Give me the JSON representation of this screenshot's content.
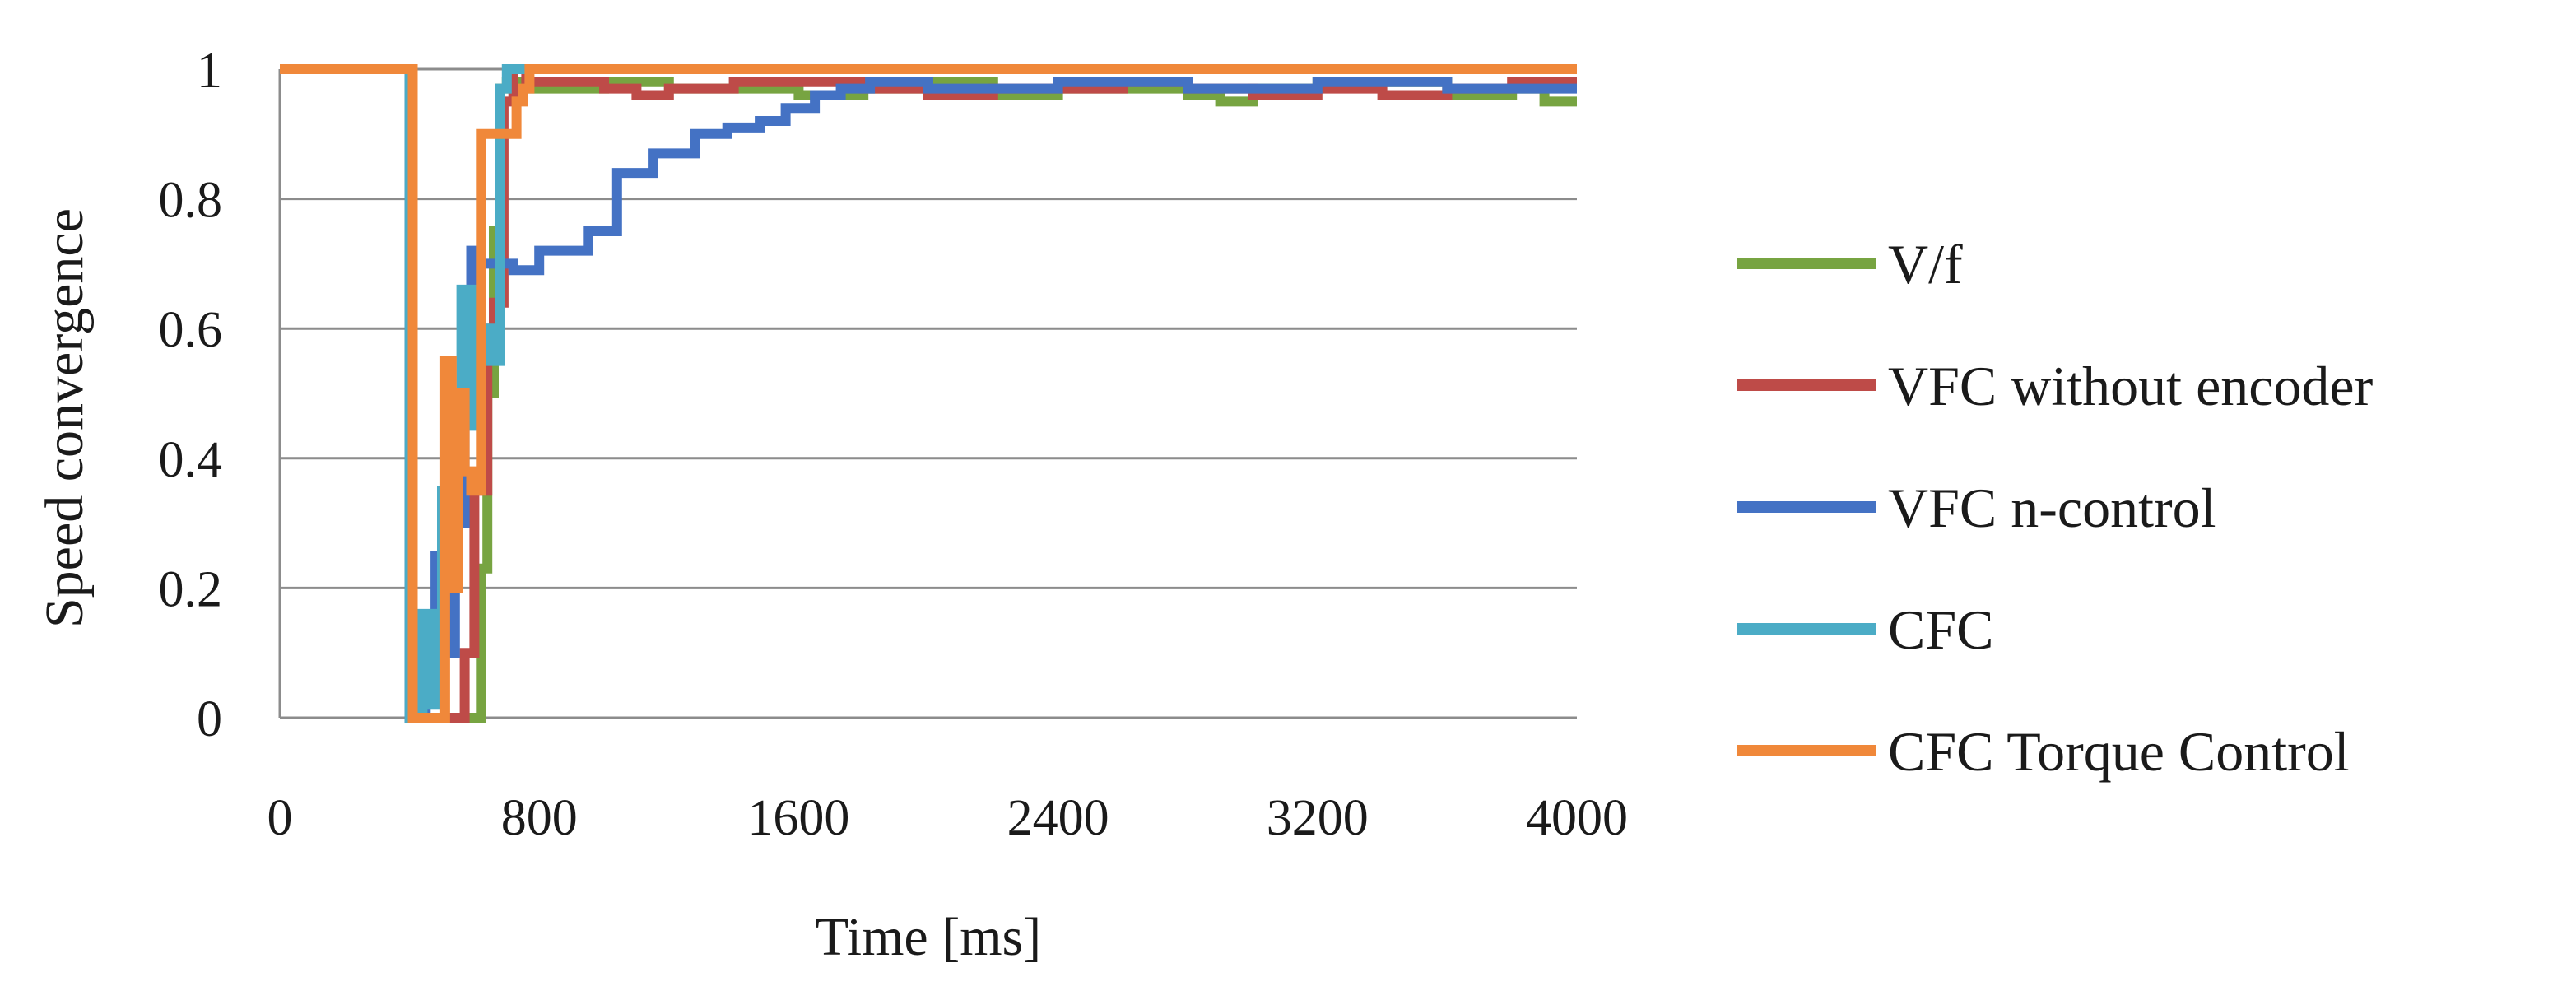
{
  "chart_data": {
    "type": "line",
    "title": "",
    "xlabel": "Time [ms]",
    "ylabel": "Speed convergence",
    "xlim": [
      0,
      4000
    ],
    "ylim": [
      0,
      1
    ],
    "x_ticks": [
      0,
      800,
      1600,
      2400,
      3200,
      4000
    ],
    "y_ticks": [
      0,
      0.2,
      0.4,
      0.6,
      0.8,
      1
    ],
    "x_tick_labels": [
      "0",
      "800",
      "1600",
      "2400",
      "3200",
      "4000"
    ],
    "y_tick_labels": [
      "0",
      "0.2",
      "0.4",
      "0.6",
      "0.8",
      "1"
    ],
    "grid": "horizontal",
    "legend_position": "right",
    "series": [
      {
        "name": "V/f",
        "color": "#77A441",
        "x": [
          0,
          400,
          400,
          500,
          500,
          620,
          620,
          640,
          640,
          660,
          660,
          680,
          680,
          700,
          700,
          750,
          750,
          1000,
          1000,
          1200,
          1200,
          1600,
          1600,
          1800,
          1800,
          2000,
          2000,
          2200,
          2200,
          2400,
          2400,
          2800,
          2800,
          2900,
          2900,
          3000,
          3000,
          3200,
          3200,
          3600,
          3600,
          3800,
          3800,
          3900,
          3900,
          4000
        ],
        "y": [
          1,
          1,
          0,
          0,
          0,
          0,
          0.23,
          0.23,
          0.5,
          0.5,
          0.75,
          0.75,
          0.97,
          0.97,
          0.98,
          0.98,
          0.97,
          0.97,
          0.98,
          0.98,
          0.97,
          0.97,
          0.96,
          0.96,
          0.97,
          0.97,
          0.98,
          0.98,
          0.96,
          0.96,
          0.97,
          0.97,
          0.96,
          0.96,
          0.95,
          0.95,
          0.97,
          0.97,
          0.98,
          0.98,
          0.96,
          0.96,
          0.97,
          0.97,
          0.95,
          0.95
        ]
      },
      {
        "name": "VFC without encoder",
        "color": "#BE4B48",
        "x": [
          0,
          400,
          400,
          550,
          550,
          570,
          570,
          600,
          600,
          640,
          640,
          660,
          660,
          690,
          690,
          720,
          720,
          760,
          760,
          1000,
          1000,
          1100,
          1100,
          1200,
          1200,
          1400,
          1400,
          1800,
          1800,
          2000,
          2000,
          2200,
          2200,
          2600,
          2600,
          2800,
          2800,
          3000,
          3000,
          3200,
          3200,
          3400,
          3400,
          3600,
          3600,
          3800,
          3800,
          4000
        ],
        "y": [
          1,
          1,
          0,
          0,
          0,
          0,
          0.1,
          0.1,
          0.35,
          0.35,
          0.6,
          0.6,
          0.64,
          0.64,
          0.95,
          0.95,
          1,
          1,
          0.98,
          0.98,
          0.97,
          0.97,
          0.96,
          0.96,
          0.97,
          0.97,
          0.98,
          0.98,
          0.97,
          0.97,
          0.96,
          0.96,
          0.97,
          0.97,
          0.98,
          0.98,
          0.97,
          0.97,
          0.96,
          0.96,
          0.97,
          0.97,
          0.96,
          0.96,
          0.97,
          0.97,
          0.98,
          0.98
        ]
      },
      {
        "name": "VFC n-control",
        "color": "#4472C4",
        "x": [
          0,
          400,
          400,
          450,
          450,
          480,
          480,
          510,
          510,
          540,
          540,
          570,
          570,
          590,
          590,
          610,
          610,
          640,
          640,
          690,
          690,
          720,
          720,
          800,
          800,
          880,
          880,
          950,
          950,
          1040,
          1040,
          1100,
          1100,
          1150,
          1150,
          1200,
          1200,
          1280,
          1280,
          1380,
          1380,
          1480,
          1480,
          1560,
          1560,
          1650,
          1650,
          1730,
          1730,
          1820,
          1820,
          1900,
          1900,
          2000,
          2000,
          2400,
          2400,
          2800,
          2800,
          3200,
          3200,
          3600,
          3600,
          4000
        ],
        "y": [
          1,
          1,
          0,
          0,
          0.15,
          0.15,
          0.25,
          0.25,
          0.1,
          0.1,
          0.3,
          0.3,
          0.6,
          0.6,
          0.72,
          0.72,
          0.7,
          0.7,
          0.7,
          0.7,
          0.7,
          0.7,
          0.69,
          0.69,
          0.72,
          0.72,
          0.72,
          0.72,
          0.75,
          0.75,
          0.84,
          0.84,
          0.84,
          0.84,
          0.87,
          0.87,
          0.87,
          0.87,
          0.9,
          0.9,
          0.91,
          0.91,
          0.92,
          0.92,
          0.94,
          0.94,
          0.96,
          0.96,
          0.97,
          0.97,
          0.98,
          0.98,
          0.98,
          0.98,
          0.97,
          0.97,
          0.98,
          0.98,
          0.97,
          0.97,
          0.98,
          0.98,
          0.97,
          0.97
        ]
      },
      {
        "name": "CFC",
        "color": "#4BACC6",
        "x": [
          0,
          400,
          400,
          440,
          440,
          470,
          470,
          500,
          500,
          530,
          530,
          560,
          560,
          590,
          590,
          620,
          620,
          650,
          650,
          680,
          680,
          700,
          700,
          740,
          740,
          4000
        ],
        "y": [
          1,
          1,
          0,
          0,
          0.16,
          0.16,
          0.02,
          0.02,
          0.35,
          0.35,
          0.45,
          0.45,
          0.66,
          0.66,
          0.45,
          0.45,
          0.6,
          0.6,
          0.55,
          0.55,
          0.97,
          0.97,
          1,
          1,
          1,
          1
        ]
      },
      {
        "name": "CFC Torque Control",
        "color": "#F0883A",
        "x": [
          0,
          410,
          410,
          510,
          510,
          530,
          530,
          550,
          550,
          570,
          570,
          590,
          590,
          620,
          620,
          660,
          660,
          700,
          700,
          730,
          730,
          750,
          750,
          770,
          770,
          4000
        ],
        "y": [
          1,
          1,
          0,
          0,
          0.55,
          0.55,
          0.2,
          0.2,
          0.5,
          0.5,
          0.38,
          0.38,
          0.35,
          0.35,
          0.9,
          0.9,
          0.9,
          0.9,
          0.9,
          0.9,
          0.95,
          0.95,
          0.97,
          0.97,
          1,
          1
        ]
      }
    ]
  }
}
